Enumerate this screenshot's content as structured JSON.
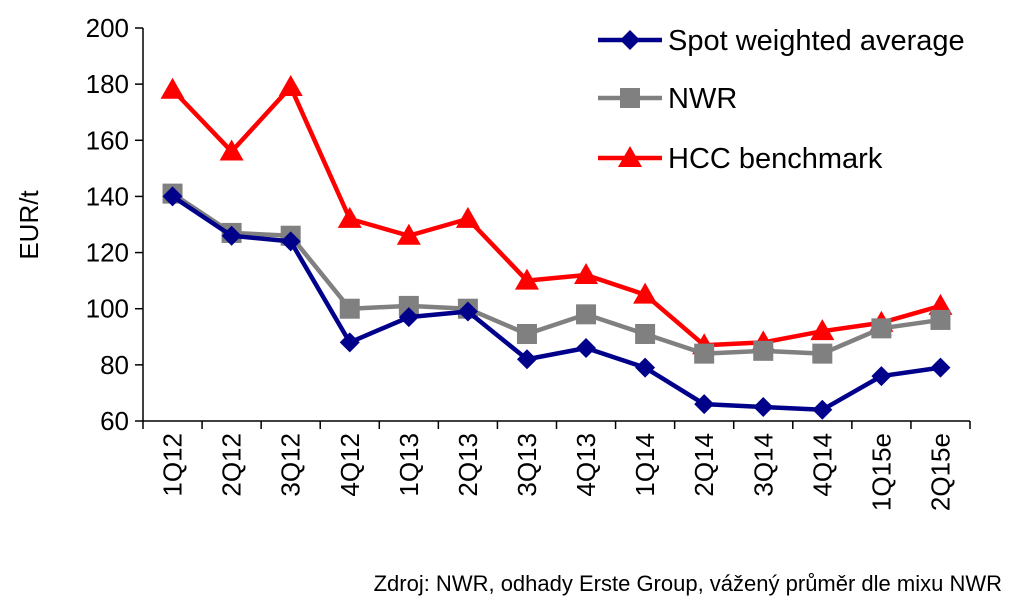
{
  "chart_data": {
    "type": "line",
    "categories": [
      "1Q12",
      "2Q12",
      "3Q12",
      "4Q12",
      "1Q13",
      "2Q13",
      "3Q13",
      "4Q13",
      "1Q14",
      "2Q14",
      "3Q14",
      "4Q14",
      "1Q15e",
      "2Q15e"
    ],
    "ylabel": "EUR/t",
    "ylim": [
      60,
      200
    ],
    "yticks": [
      60,
      80,
      100,
      120,
      140,
      160,
      180,
      200
    ],
    "legend_position": "top-right",
    "series": [
      {
        "name": "Spot weighted average",
        "color": "#00008B",
        "marker": "diamond",
        "values": [
          140,
          126,
          124,
          88,
          97,
          99,
          82,
          86,
          79,
          66,
          65,
          64,
          76,
          79
        ]
      },
      {
        "name": "NWR",
        "color": "#808080",
        "marker": "square",
        "values": [
          141,
          127,
          126,
          100,
          101,
          100,
          91,
          98,
          91,
          84,
          85,
          84,
          93,
          96
        ]
      },
      {
        "name": "HCC benchmark",
        "color": "#FF0000",
        "marker": "triangle",
        "values": [
          178,
          156,
          179,
          132,
          126,
          132,
          110,
          112,
          105,
          87,
          88,
          92,
          95,
          101
        ]
      }
    ]
  },
  "source_note": "Zdroj: NWR, odhady Erste Group, vážený průměr dle mixu NWR"
}
